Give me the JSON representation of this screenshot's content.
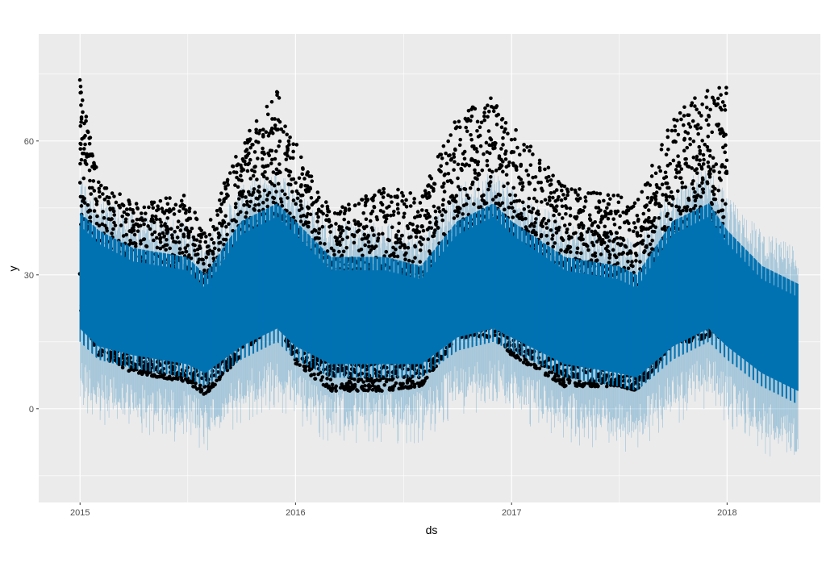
{
  "chart_data": {
    "type": "scatter",
    "title": "",
    "xlabel": "ds",
    "ylabel": "y",
    "x_axis": {
      "kind": "date",
      "range": [
        "2014-10-23",
        "2018-06-08"
      ],
      "ticks": [
        "2015-01-01",
        "2016-01-01",
        "2017-01-01",
        "2018-01-01"
      ],
      "tick_labels": [
        "2015",
        "2016",
        "2017",
        "2018"
      ]
    },
    "y_axis": {
      "range": [
        -21,
        84
      ],
      "ticks": [
        0,
        30,
        60
      ],
      "tick_labels": [
        "0",
        "30",
        "60"
      ]
    },
    "grid": true,
    "legend": "none",
    "panel_background": "#ebebeb",
    "grid_color": "#ffffff",
    "colors": {
      "observed": "#000000",
      "forecast": "#0072b2",
      "uncertainty": "#0072b2"
    },
    "series": [
      {
        "kind": "observed points (daily)",
        "date_range": [
          "2015-01-01",
          "2017-12-31"
        ],
        "approx_level_by_month": [
          [
            "2015-01",
            22,
            74
          ],
          [
            "2015-02",
            12,
            52
          ],
          [
            "2015-04",
            8,
            46
          ],
          [
            "2015-07",
            6,
            48
          ],
          [
            "2015-08",
            3,
            40
          ],
          [
            "2015-10",
            12,
            60
          ],
          [
            "2015-12",
            20,
            72
          ],
          [
            "2016-01",
            10,
            60
          ],
          [
            "2016-03",
            4,
            44
          ],
          [
            "2016-06",
            4,
            50
          ],
          [
            "2016-08",
            5,
            48
          ],
          [
            "2016-10",
            16,
            66
          ],
          [
            "2016-12",
            16,
            70
          ],
          [
            "2017-01",
            12,
            64
          ],
          [
            "2017-04",
            5,
            50
          ],
          [
            "2017-07",
            5,
            48
          ],
          [
            "2017-08",
            4,
            46
          ],
          [
            "2017-10",
            14,
            66
          ],
          [
            "2017-12",
            16,
            72
          ]
        ]
      },
      {
        "kind": "forecast yhat",
        "date_range": [
          "2015-01-01",
          "2018-05-01"
        ],
        "approx_band_by_month": [
          [
            "2015-01",
            18,
            44
          ],
          [
            "2015-02",
            14,
            40
          ],
          [
            "2015-04",
            12,
            36
          ],
          [
            "2015-07",
            10,
            34
          ],
          [
            "2015-08",
            8,
            30
          ],
          [
            "2015-10",
            14,
            42
          ],
          [
            "2015-12",
            18,
            46
          ],
          [
            "2016-01",
            14,
            42
          ],
          [
            "2016-03",
            10,
            34
          ],
          [
            "2016-06",
            10,
            34
          ],
          [
            "2016-08",
            10,
            32
          ],
          [
            "2016-10",
            16,
            42
          ],
          [
            "2016-12",
            18,
            46
          ],
          [
            "2017-01",
            16,
            42
          ],
          [
            "2017-04",
            10,
            34
          ],
          [
            "2017-07",
            8,
            32
          ],
          [
            "2017-08",
            7,
            30
          ],
          [
            "2017-10",
            14,
            42
          ],
          [
            "2017-12",
            18,
            46
          ],
          [
            "2018-01",
            14,
            40
          ],
          [
            "2018-03",
            8,
            32
          ],
          [
            "2018-05",
            4,
            28
          ]
        ]
      }
    ]
  }
}
